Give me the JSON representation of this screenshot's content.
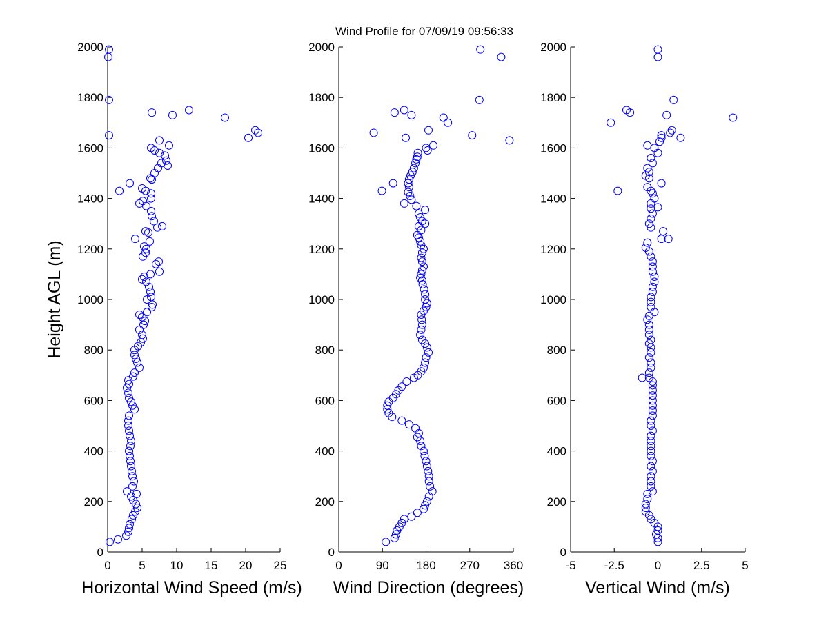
{
  "title": "Wind Profile for  07/09/19 09:56:33",
  "chart_data": [
    {
      "type": "scatter",
      "xlabel": "Horizontal Wind Speed (m/s)",
      "ylabel": "Height AGL (m)",
      "xlim": [
        0,
        25
      ],
      "ylim": [
        0,
        2000
      ],
      "xticks": [
        "0",
        "5",
        "10",
        "15",
        "20",
        "25"
      ],
      "yticks": [
        "0",
        "200",
        "400",
        "600",
        "800",
        "1000",
        "1200",
        "1400",
        "1600",
        "1800",
        "2000"
      ],
      "grid": false,
      "marker": "open-circle",
      "color": "#0000ff",
      "points": [
        [
          0.3,
          40
        ],
        [
          1.5,
          50
        ],
        [
          2.7,
          65
        ],
        [
          3.0,
          80
        ],
        [
          3.1,
          95
        ],
        [
          3.2,
          110
        ],
        [
          3.5,
          130
        ],
        [
          3.7,
          145
        ],
        [
          4.0,
          160
        ],
        [
          4.3,
          175
        ],
        [
          4.1,
          190
        ],
        [
          3.7,
          205
        ],
        [
          3.4,
          220
        ],
        [
          2.8,
          240
        ],
        [
          4.2,
          230
        ],
        [
          3.6,
          260
        ],
        [
          3.8,
          280
        ],
        [
          3.6,
          300
        ],
        [
          3.5,
          320
        ],
        [
          3.4,
          340
        ],
        [
          3.3,
          360
        ],
        [
          3.2,
          380
        ],
        [
          3.1,
          400
        ],
        [
          3.3,
          420
        ],
        [
          3.4,
          440
        ],
        [
          3.2,
          460
        ],
        [
          3.1,
          480
        ],
        [
          3.0,
          500
        ],
        [
          3.0,
          520
        ],
        [
          3.1,
          540
        ],
        [
          3.9,
          565
        ],
        [
          3.6,
          580
        ],
        [
          3.4,
          595
        ],
        [
          3.1,
          610
        ],
        [
          3.0,
          630
        ],
        [
          2.8,
          650
        ],
        [
          3.1,
          665
        ],
        [
          3.0,
          680
        ],
        [
          3.7,
          695
        ],
        [
          3.9,
          710
        ],
        [
          4.6,
          730
        ],
        [
          4.3,
          750
        ],
        [
          4.1,
          765
        ],
        [
          3.9,
          780
        ],
        [
          3.9,
          800
        ],
        [
          4.4,
          815
        ],
        [
          4.8,
          830
        ],
        [
          5.1,
          845
        ],
        [
          5.0,
          860
        ],
        [
          4.6,
          880
        ],
        [
          5.2,
          900
        ],
        [
          5.4,
          915
        ],
        [
          5.0,
          930
        ],
        [
          4.6,
          940
        ],
        [
          5.7,
          950
        ],
        [
          6.4,
          970
        ],
        [
          6.5,
          980
        ],
        [
          5.7,
          1000
        ],
        [
          6.3,
          1010
        ],
        [
          6.2,
          1030
        ],
        [
          6.0,
          1050
        ],
        [
          5.6,
          1070
        ],
        [
          5.3,
          1090
        ],
        [
          5.0,
          1080
        ],
        [
          6.2,
          1100
        ],
        [
          7.5,
          1110
        ],
        [
          7.0,
          1140
        ],
        [
          7.4,
          1150
        ],
        [
          5.1,
          1170
        ],
        [
          5.5,
          1185
        ],
        [
          5.6,
          1200
        ],
        [
          5.3,
          1210
        ],
        [
          6.1,
          1230
        ],
        [
          4.0,
          1240
        ],
        [
          5.9,
          1265
        ],
        [
          5.5,
          1270
        ],
        [
          7.2,
          1285
        ],
        [
          7.9,
          1290
        ],
        [
          6.7,
          1310
        ],
        [
          6.4,
          1330
        ],
        [
          6.3,
          1350
        ],
        [
          5.6,
          1370
        ],
        [
          4.6,
          1380
        ],
        [
          5.1,
          1390
        ],
        [
          6.3,
          1400
        ],
        [
          6.3,
          1420
        ],
        [
          5.5,
          1430
        ],
        [
          1.7,
          1430
        ],
        [
          5.0,
          1440
        ],
        [
          3.2,
          1460
        ],
        [
          6.4,
          1475
        ],
        [
          6.2,
          1480
        ],
        [
          6.8,
          1500
        ],
        [
          7.3,
          1520
        ],
        [
          7.8,
          1540
        ],
        [
          8.5,
          1550
        ],
        [
          8.7,
          1530
        ],
        [
          8.3,
          1570
        ],
        [
          7.5,
          1580
        ],
        [
          6.3,
          1600
        ],
        [
          6.8,
          1590
        ],
        [
          8.9,
          1610
        ],
        [
          7.5,
          1630
        ],
        [
          0.2,
          1650
        ],
        [
          21.8,
          1660
        ],
        [
          21.4,
          1670
        ],
        [
          20.4,
          1640
        ],
        [
          17.0,
          1720
        ],
        [
          9.4,
          1730
        ],
        [
          6.4,
          1740
        ],
        [
          11.8,
          1750
        ],
        [
          0.2,
          1790
        ],
        [
          0.1,
          1960
        ],
        [
          0.2,
          1990
        ]
      ]
    },
    {
      "type": "scatter",
      "xlabel": "Wind Direction (degrees)",
      "ylabel": "",
      "xlim": [
        0,
        360
      ],
      "ylim": [
        0,
        2000
      ],
      "xticks": [
        "0",
        "90",
        "180",
        "270",
        "360"
      ],
      "yticks": [
        "0",
        "200",
        "400",
        "600",
        "800",
        "1000",
        "1200",
        "1400",
        "1600",
        "1800",
        "2000"
      ],
      "grid": false,
      "marker": "open-circle",
      "color": "#0000ff",
      "points": [
        [
          97,
          40
        ],
        [
          115,
          55
        ],
        [
          118,
          70
        ],
        [
          120,
          85
        ],
        [
          125,
          100
        ],
        [
          130,
          115
        ],
        [
          135,
          130
        ],
        [
          150,
          140
        ],
        [
          162,
          155
        ],
        [
          175,
          170
        ],
        [
          178,
          185
        ],
        [
          182,
          200
        ],
        [
          186,
          220
        ],
        [
          193,
          240
        ],
        [
          188,
          260
        ],
        [
          186,
          280
        ],
        [
          186,
          300
        ],
        [
          184,
          320
        ],
        [
          182,
          340
        ],
        [
          180,
          360
        ],
        [
          177,
          380
        ],
        [
          175,
          400
        ],
        [
          170,
          420
        ],
        [
          168,
          440
        ],
        [
          162,
          455
        ],
        [
          165,
          470
        ],
        [
          158,
          490
        ],
        [
          145,
          505
        ],
        [
          130,
          520
        ],
        [
          110,
          535
        ],
        [
          103,
          550
        ],
        [
          100,
          565
        ],
        [
          100,
          580
        ],
        [
          103,
          595
        ],
        [
          112,
          610
        ],
        [
          118,
          625
        ],
        [
          123,
          640
        ],
        [
          130,
          655
        ],
        [
          140,
          675
        ],
        [
          155,
          690
        ],
        [
          163,
          700
        ],
        [
          170,
          715
        ],
        [
          175,
          730
        ],
        [
          178,
          750
        ],
        [
          180,
          770
        ],
        [
          185,
          790
        ],
        [
          182,
          810
        ],
        [
          178,
          825
        ],
        [
          172,
          840
        ],
        [
          168,
          860
        ],
        [
          170,
          880
        ],
        [
          172,
          900
        ],
        [
          171,
          920
        ],
        [
          170,
          940
        ],
        [
          175,
          955
        ],
        [
          180,
          970
        ],
        [
          182,
          985
        ],
        [
          178,
          1000
        ],
        [
          178,
          1020
        ],
        [
          176,
          1040
        ],
        [
          173,
          1060
        ],
        [
          172,
          1075
        ],
        [
          168,
          1085
        ],
        [
          170,
          1100
        ],
        [
          172,
          1115
        ],
        [
          175,
          1130
        ],
        [
          172,
          1150
        ],
        [
          170,
          1165
        ],
        [
          172,
          1185
        ],
        [
          175,
          1200
        ],
        [
          170,
          1215
        ],
        [
          168,
          1230
        ],
        [
          165,
          1245
        ],
        [
          162,
          1255
        ],
        [
          170,
          1275
        ],
        [
          165,
          1290
        ],
        [
          178,
          1300
        ],
        [
          172,
          1310
        ],
        [
          168,
          1325
        ],
        [
          165,
          1340
        ],
        [
          178,
          1355
        ],
        [
          160,
          1370
        ],
        [
          135,
          1380
        ],
        [
          150,
          1395
        ],
        [
          147,
          1410
        ],
        [
          143,
          1425
        ],
        [
          89,
          1430
        ],
        [
          145,
          1445
        ],
        [
          143,
          1460
        ],
        [
          112,
          1460
        ],
        [
          145,
          1475
        ],
        [
          148,
          1490
        ],
        [
          152,
          1505
        ],
        [
          155,
          1520
        ],
        [
          158,
          1540
        ],
        [
          160,
          1555
        ],
        [
          162,
          1565
        ],
        [
          163,
          1580
        ],
        [
          180,
          1600
        ],
        [
          195,
          1610
        ],
        [
          183,
          1590
        ],
        [
          352,
          1630
        ],
        [
          275,
          1650
        ],
        [
          72,
          1660
        ],
        [
          138,
          1640
        ],
        [
          185,
          1670
        ],
        [
          225,
          1700
        ],
        [
          216,
          1720
        ],
        [
          150,
          1730
        ],
        [
          115,
          1740
        ],
        [
          135,
          1750
        ],
        [
          290,
          1790
        ],
        [
          335,
          1960
        ],
        [
          292,
          1990
        ]
      ]
    },
    {
      "type": "scatter",
      "xlabel": "Vertical Wind (m/s)",
      "ylabel": "",
      "xlim": [
        -5,
        5
      ],
      "ylim": [
        0,
        2000
      ],
      "xticks": [
        "-5",
        "-2.5",
        "0",
        "2.5",
        "5"
      ],
      "yticks": [
        "0",
        "200",
        "400",
        "600",
        "800",
        "1000",
        "1200",
        "1400",
        "1600",
        "1800",
        "2000"
      ],
      "grid": false,
      "marker": "open-circle",
      "color": "#0000ff",
      "points": [
        [
          0,
          40
        ],
        [
          0,
          55
        ],
        [
          -0.1,
          70
        ],
        [
          0,
          85
        ],
        [
          0,
          100
        ],
        [
          -0.2,
          115
        ],
        [
          -0.4,
          130
        ],
        [
          -0.5,
          145
        ],
        [
          -0.7,
          160
        ],
        [
          -0.7,
          175
        ],
        [
          -0.7,
          190
        ],
        [
          -0.6,
          210
        ],
        [
          -0.6,
          230
        ],
        [
          -0.3,
          240
        ],
        [
          -0.4,
          260
        ],
        [
          -0.4,
          280
        ],
        [
          -0.4,
          300
        ],
        [
          -0.3,
          320
        ],
        [
          -0.4,
          340
        ],
        [
          -0.3,
          360
        ],
        [
          -0.4,
          380
        ],
        [
          -0.4,
          400
        ],
        [
          -0.4,
          420
        ],
        [
          -0.4,
          440
        ],
        [
          -0.4,
          460
        ],
        [
          -0.3,
          480
        ],
        [
          -0.4,
          500
        ],
        [
          -0.4,
          520
        ],
        [
          -0.3,
          540
        ],
        [
          -0.3,
          560
        ],
        [
          -0.3,
          580
        ],
        [
          -0.3,
          600
        ],
        [
          -0.3,
          620
        ],
        [
          -0.3,
          640
        ],
        [
          -0.3,
          660
        ],
        [
          -0.3,
          675
        ],
        [
          -0.5,
          690
        ],
        [
          -0.9,
          690
        ],
        [
          -0.5,
          710
        ],
        [
          -0.4,
          730
        ],
        [
          -0.4,
          750
        ],
        [
          -0.5,
          770
        ],
        [
          -0.4,
          790
        ],
        [
          -0.4,
          810
        ],
        [
          -0.5,
          825
        ],
        [
          -0.4,
          840
        ],
        [
          -0.5,
          860
        ],
        [
          -0.5,
          880
        ],
        [
          -0.5,
          900
        ],
        [
          -0.6,
          920
        ],
        [
          -0.5,
          935
        ],
        [
          -0.2,
          950
        ],
        [
          -0.4,
          970
        ],
        [
          -0.4,
          990
        ],
        [
          -0.4,
          1010
        ],
        [
          -0.3,
          1030
        ],
        [
          -0.3,
          1050
        ],
        [
          -0.2,
          1070
        ],
        [
          -0.2,
          1090
        ],
        [
          -0.3,
          1110
        ],
        [
          -0.3,
          1130
        ],
        [
          -0.3,
          1150
        ],
        [
          -0.4,
          1170
        ],
        [
          -0.5,
          1190
        ],
        [
          -0.7,
          1205
        ],
        [
          -0.6,
          1225
        ],
        [
          0.2,
          1240
        ],
        [
          0.6,
          1240
        ],
        [
          0.3,
          1270
        ],
        [
          -0.4,
          1285
        ],
        [
          -0.5,
          1300
        ],
        [
          -0.4,
          1320
        ],
        [
          -0.3,
          1340
        ],
        [
          -0.4,
          1360
        ],
        [
          0.0,
          1365
        ],
        [
          -0.4,
          1380
        ],
        [
          -0.2,
          1400
        ],
        [
          -0.3,
          1420
        ],
        [
          -0.4,
          1430
        ],
        [
          -2.3,
          1430
        ],
        [
          -0.6,
          1445
        ],
        [
          0.2,
          1460
        ],
        [
          -0.5,
          1480
        ],
        [
          -0.7,
          1490
        ],
        [
          -0.5,
          1505
        ],
        [
          -0.6,
          1520
        ],
        [
          -0.3,
          1540
        ],
        [
          -0.4,
          1560
        ],
        [
          0,
          1580
        ],
        [
          -0.2,
          1600
        ],
        [
          -0.6,
          1610
        ],
        [
          0.1,
          1625
        ],
        [
          0.2,
          1640
        ],
        [
          1.3,
          1640
        ],
        [
          0.2,
          1650
        ],
        [
          0.7,
          1660
        ],
        [
          0.8,
          1670
        ],
        [
          -2.7,
          1700
        ],
        [
          4.3,
          1720
        ],
        [
          0.5,
          1730
        ],
        [
          -1.6,
          1740
        ],
        [
          -1.8,
          1750
        ],
        [
          0.9,
          1790
        ],
        [
          0,
          1960
        ],
        [
          0,
          1990
        ]
      ]
    }
  ]
}
